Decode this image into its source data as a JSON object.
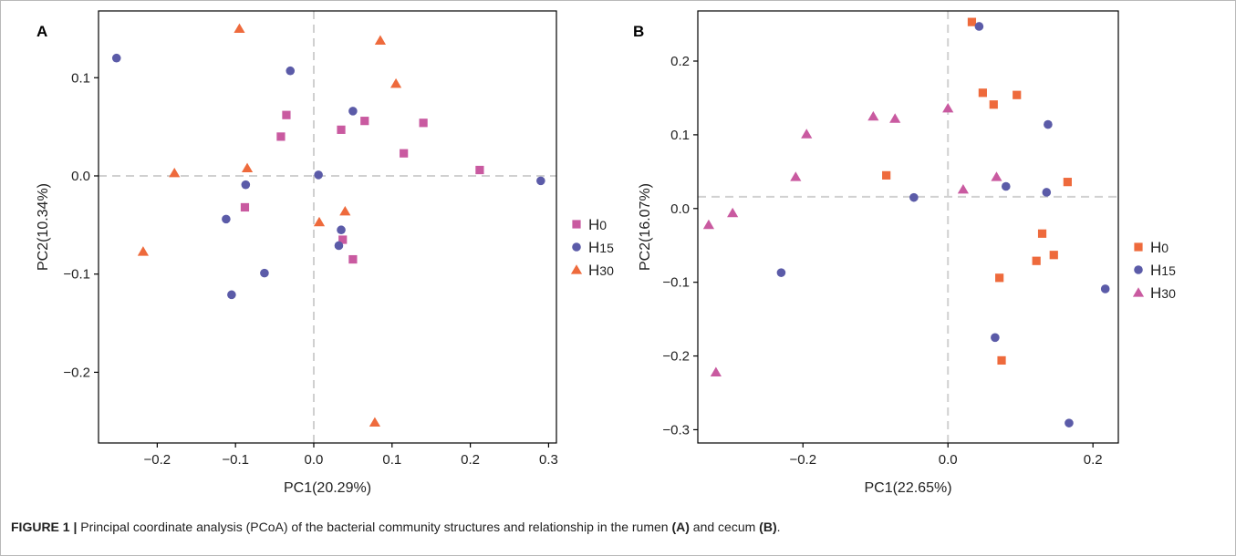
{
  "figure": {
    "caption_label": "FIGURE 1 |",
    "caption_text": " Principal coordinate analysis (PCoA) of the bacterial community structures and relationship in the rumen ",
    "caption_ref_a": "(A)",
    "caption_mid": " and cecum ",
    "caption_ref_b": "(B)",
    "caption_end": "."
  },
  "colors": {
    "H0_A": "#c95aa0",
    "H15": "#5b5ba8",
    "H30_A": "#ee6a3c",
    "H0_B": "#ee6a3c",
    "H30_B": "#c95aa0",
    "reference": "#d0d0d0",
    "axis": "#000000"
  },
  "chart_data": [
    {
      "panel": "A",
      "type": "scatter",
      "xlabel": "PC1(20.29%)",
      "ylabel": "PC2(10.34%)",
      "xlim": [
        -0.275,
        0.31
      ],
      "ylim": [
        -0.272,
        0.168
      ],
      "xticks": [
        -0.2,
        -0.1,
        0.0,
        0.1,
        0.2,
        0.3
      ],
      "xtick_labels": [
        "−0.2",
        "−0.1",
        "0.0",
        "0.1",
        "0.2",
        "0.3"
      ],
      "yticks": [
        -0.2,
        -0.1,
        0.0,
        0.1
      ],
      "ytick_labels": [
        "−0.2",
        "−0.1",
        "0.0",
        "0.1"
      ],
      "reference_lines": {
        "x": 0.0,
        "y": 0.0
      },
      "grid": false,
      "legend_position": "right",
      "series": [
        {
          "name": "H0",
          "legend_main": "H",
          "legend_sub": "0",
          "marker": "square",
          "color_key": "H0_A",
          "points": [
            [
              -0.035,
              0.062
            ],
            [
              -0.042,
              0.04
            ],
            [
              0.035,
              0.047
            ],
            [
              0.065,
              0.056
            ],
            [
              0.14,
              0.054
            ],
            [
              0.115,
              0.023
            ],
            [
              0.212,
              0.006
            ],
            [
              -0.088,
              -0.032
            ],
            [
              0.037,
              -0.065
            ],
            [
              0.05,
              -0.085
            ]
          ]
        },
        {
          "name": "H15",
          "legend_main": "H",
          "legend_sub": "15",
          "marker": "circle",
          "color_key": "H15",
          "points": [
            [
              -0.252,
              0.12
            ],
            [
              -0.03,
              0.107
            ],
            [
              0.05,
              0.066
            ],
            [
              0.006,
              0.001
            ],
            [
              0.29,
              -0.005
            ],
            [
              -0.087,
              -0.009
            ],
            [
              -0.112,
              -0.044
            ],
            [
              -0.063,
              -0.099
            ],
            [
              -0.105,
              -0.121
            ],
            [
              0.035,
              -0.055
            ],
            [
              0.032,
              -0.071
            ]
          ]
        },
        {
          "name": "H30",
          "legend_main": "H",
          "legend_sub": "30",
          "marker": "triangle",
          "color_key": "H30_A",
          "points": [
            [
              -0.095,
              0.15
            ],
            [
              0.085,
              0.138
            ],
            [
              0.105,
              0.094
            ],
            [
              -0.178,
              0.003
            ],
            [
              -0.085,
              0.008
            ],
            [
              -0.218,
              -0.077
            ],
            [
              0.04,
              -0.036
            ],
            [
              0.007,
              -0.047
            ],
            [
              0.078,
              -0.251
            ]
          ]
        }
      ]
    },
    {
      "panel": "B",
      "type": "scatter",
      "xlabel": "PC1(22.65%)",
      "ylabel": "PC2(16.07%)",
      "xlim": [
        -0.345,
        0.235
      ],
      "ylim": [
        -0.318,
        0.268
      ],
      "xticks": [
        -0.2,
        0.0,
        0.2
      ],
      "xtick_labels": [
        "−0.2",
        "0.0",
        "0.2"
      ],
      "yticks": [
        -0.3,
        -0.2,
        -0.1,
        0.0,
        0.1,
        0.2
      ],
      "ytick_labels": [
        "−0.3",
        "−0.2",
        "−0.1",
        "0.0",
        "0.1",
        "0.2"
      ],
      "reference_lines": {
        "x": 0.0,
        "y": 0.016
      },
      "grid": false,
      "legend_position": "right",
      "series": [
        {
          "name": "H0",
          "legend_main": "H",
          "legend_sub": "0",
          "marker": "square",
          "color_key": "H0_B",
          "points": [
            [
              0.033,
              0.253
            ],
            [
              0.048,
              0.157
            ],
            [
              0.095,
              0.154
            ],
            [
              0.063,
              0.141
            ],
            [
              -0.085,
              0.045
            ],
            [
              0.165,
              0.036
            ],
            [
              0.13,
              -0.034
            ],
            [
              0.146,
              -0.063
            ],
            [
              0.122,
              -0.071
            ],
            [
              0.071,
              -0.094
            ],
            [
              0.074,
              -0.206
            ]
          ]
        },
        {
          "name": "H15",
          "legend_main": "H",
          "legend_sub": "15",
          "marker": "circle",
          "color_key": "H15",
          "points": [
            [
              0.043,
              0.247
            ],
            [
              0.138,
              0.114
            ],
            [
              0.08,
              0.03
            ],
            [
              0.136,
              0.022
            ],
            [
              -0.047,
              0.015
            ],
            [
              -0.23,
              -0.087
            ],
            [
              0.217,
              -0.109
            ],
            [
              0.065,
              -0.175
            ],
            [
              0.167,
              -0.291
            ]
          ]
        },
        {
          "name": "H30",
          "legend_main": "H",
          "legend_sub": "30",
          "marker": "triangle",
          "color_key": "H30_B",
          "points": [
            [
              -0.103,
              0.125
            ],
            [
              -0.073,
              0.122
            ],
            [
              0.0,
              0.136
            ],
            [
              -0.195,
              0.101
            ],
            [
              -0.21,
              0.043
            ],
            [
              0.067,
              0.043
            ],
            [
              0.021,
              0.026
            ],
            [
              -0.33,
              -0.022
            ],
            [
              -0.297,
              -0.006
            ],
            [
              -0.32,
              -0.222
            ]
          ]
        }
      ]
    }
  ]
}
